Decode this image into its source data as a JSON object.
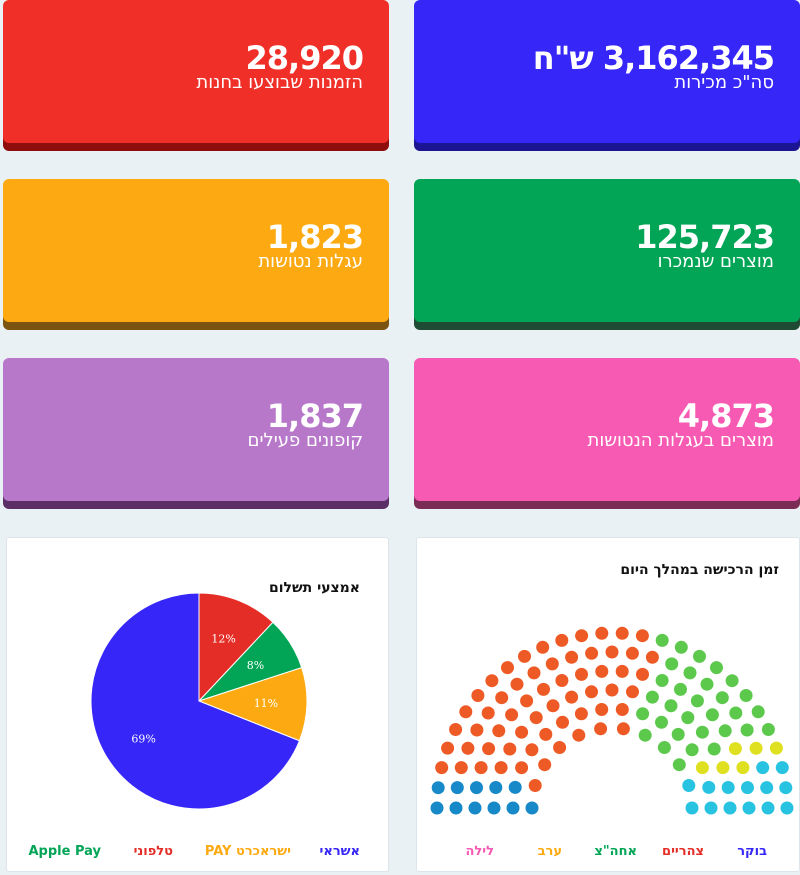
{
  "kpis": [
    {
      "value": "3,162,345 ש\"ח",
      "label": "סה\"כ מכירות",
      "color": "#3627f8",
      "shadow": "#1b1493"
    },
    {
      "value": "28,920",
      "label": "הזמנות שבוצעו בחנות",
      "color": "#f03028",
      "shadow": "#8e0d0d"
    },
    {
      "value": "125,723",
      "label": "מוצרים שנמכרו",
      "color": "#02a556",
      "shadow": "#1f4a33"
    },
    {
      "value": "1,823",
      "label": "עגלות נטושות",
      "color": "#fdaa12",
      "shadow": "#7a5410"
    },
    {
      "value": "4,873",
      "label": "מוצרים בעגלות הנטושות",
      "color": "#f75ab3",
      "shadow": "#7b2c56"
    },
    {
      "value": "1,837",
      "label": "קופונים פעילים",
      "color": "#b878ca",
      "shadow": "#5b2e66"
    }
  ],
  "pie_panel": {
    "title": "אמצעי תשלום"
  },
  "arc_panel": {
    "title": "זמן הרכישה במהלך היום"
  },
  "chart_data": [
    {
      "type": "pie",
      "title": "אמצעי תשלום",
      "categories": [
        "אשראי",
        "ישראכרט PAY",
        "טלפוני",
        "Apple Pay"
      ],
      "values": [
        69,
        11,
        12,
        8
      ],
      "labels": [
        "69%",
        "11%",
        "12%",
        "8%"
      ],
      "colors": [
        "#3627f8",
        "#fdaa12",
        "#e52d27",
        "#02a556"
      ],
      "legend": "bottom"
    },
    {
      "type": "parliament",
      "title": "זמן הרכישה במהלך היום",
      "categories": [
        "בוקר",
        "צהריים",
        "אחה\"צ",
        "ערב",
        "לילה"
      ],
      "values": [
        11,
        58,
        30,
        6,
        14
      ],
      "colors": [
        "#1788c8",
        "#ee5a25",
        "#5cc94c",
        "#dfe01f",
        "#27c3e0"
      ],
      "legend_colors": [
        "#3627f8",
        "#e52d27",
        "#02a556",
        "#fdaa12",
        "#f75ab3"
      ],
      "legend": "bottom"
    }
  ]
}
